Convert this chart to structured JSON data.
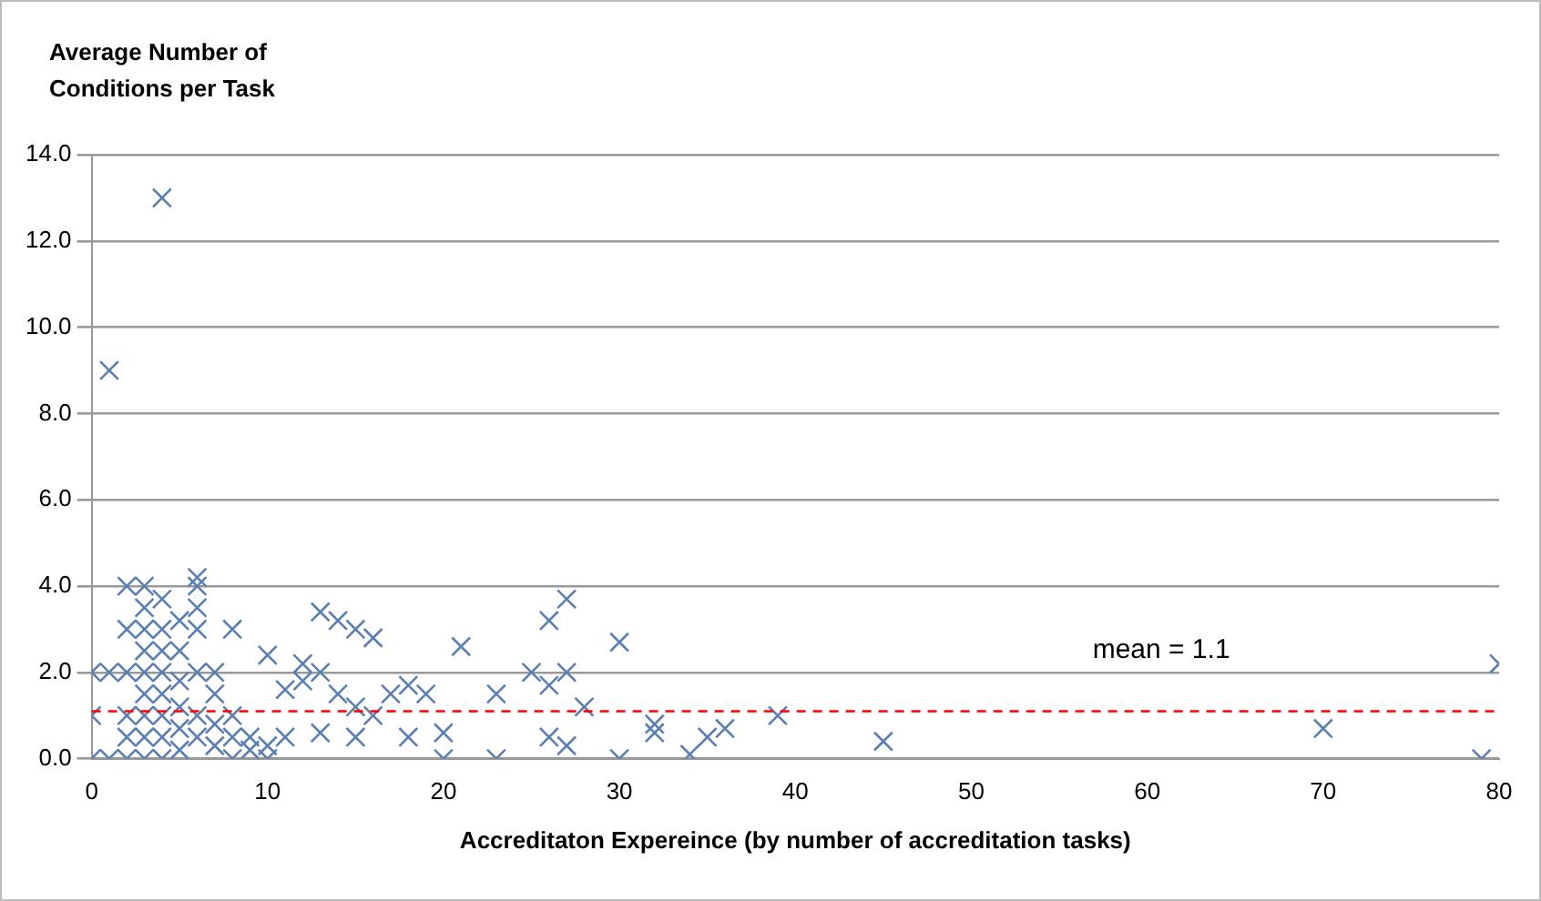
{
  "chart_data": {
    "type": "scatter",
    "xlabel": "Accreditaton Expereince (by number of accreditation tasks)",
    "ylabel": "Average Number of Conditions per Task",
    "series": [
      {
        "color": "#5b7fb0",
        "x": [
          1,
          4,
          0,
          0,
          0,
          1,
          1,
          2,
          2,
          2,
          2,
          2,
          2,
          3,
          3,
          3,
          3,
          3,
          3,
          3,
          3,
          3,
          4,
          4,
          4,
          4,
          4,
          4,
          4,
          4,
          5,
          5,
          5,
          5,
          5,
          5,
          6,
          6,
          6,
          6,
          6,
          6,
          6,
          7,
          7,
          7,
          7,
          8,
          8,
          8,
          8,
          9,
          9,
          10,
          10,
          10,
          11,
          11,
          12,
          12,
          13,
          13,
          13,
          14,
          14,
          15,
          15,
          15,
          16,
          16,
          17,
          18,
          18,
          19,
          20,
          20,
          21,
          23,
          23,
          25,
          26,
          26,
          26,
          27,
          27,
          27,
          28,
          30,
          30,
          32,
          32,
          34,
          35,
          36,
          39,
          45,
          70,
          79,
          80
        ],
        "values": [
          9,
          13,
          2,
          1,
          0,
          0,
          2,
          4,
          3,
          2,
          1,
          0.5,
          0,
          4,
          3.5,
          3,
          2.5,
          2,
          1.5,
          1,
          0.5,
          0,
          3.7,
          3,
          2.5,
          2,
          1.5,
          1,
          0.5,
          0,
          3.2,
          2.5,
          1.8,
          1.2,
          0.7,
          0.2,
          4.2,
          4,
          3.5,
          3,
          2,
          1,
          0.5,
          2,
          1.5,
          0.8,
          0.3,
          3,
          1,
          0.5,
          0,
          0.5,
          0.2,
          2.4,
          0.3,
          0,
          1.6,
          0.5,
          2.2,
          1.8,
          3.4,
          2,
          0.6,
          3.2,
          1.5,
          3,
          1.2,
          0.5,
          2.8,
          1,
          1.5,
          1.7,
          0.5,
          1.5,
          0.6,
          0,
          2.6,
          1.5,
          0,
          2,
          3.2,
          1.7,
          0.5,
          3.7,
          2,
          0.3,
          1.2,
          2.7,
          0,
          0.8,
          0.6,
          0.1,
          0.5,
          0.7,
          1,
          0.4,
          0.7,
          0,
          2.2
        ]
      }
    ],
    "marker": "cross",
    "grid": "y",
    "legend": false,
    "xlim": [
      0,
      80
    ],
    "xticks": [
      0,
      10,
      20,
      30,
      40,
      50,
      60,
      70,
      80
    ],
    "ylim": [
      0,
      14
    ],
    "yticks": [
      {
        "value": 0,
        "label": "0.0"
      },
      {
        "value": 2,
        "label": "2.0"
      },
      {
        "value": 4,
        "label": "4.0"
      },
      {
        "value": 6,
        "label": "6.0"
      },
      {
        "value": 8,
        "label": "8.0"
      },
      {
        "value": 10,
        "label": "10.0"
      },
      {
        "value": 12,
        "label": "12.0"
      },
      {
        "value": 14,
        "label": "14.0"
      }
    ],
    "ref_lines": [
      {
        "axis": "y",
        "value": 1.1,
        "label": "mean = 1.1",
        "color": "#ff0000",
        "line_style": "dashed"
      }
    ]
  }
}
